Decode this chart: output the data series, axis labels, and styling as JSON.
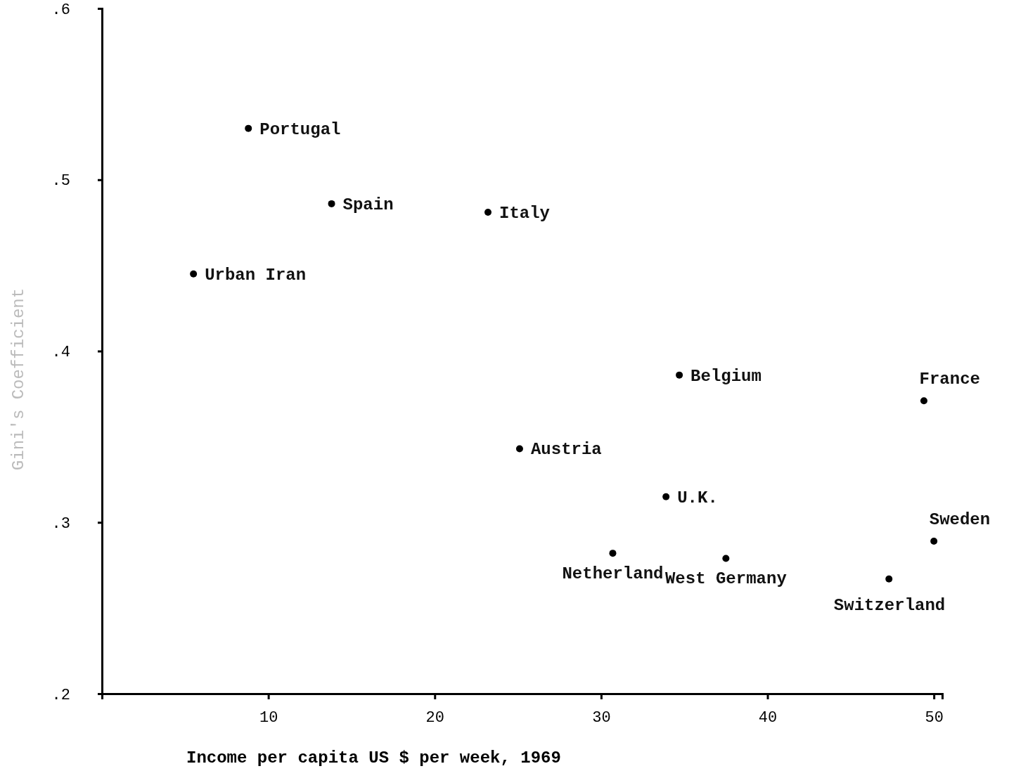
{
  "chart_data": {
    "type": "scatter",
    "xlabel": "Income per capita US $ per week, 1969",
    "ylabel": "Gini's Coefficient",
    "x": [
      8.8,
      13.8,
      23.2,
      5.5,
      34.7,
      49.4,
      25.1,
      33.9,
      30.7,
      37.5,
      50.0,
      47.3
    ],
    "values": [
      0.53,
      0.486,
      0.481,
      0.445,
      0.386,
      0.371,
      0.343,
      0.315,
      0.282,
      0.279,
      0.289,
      0.267
    ],
    "color": "#000000",
    "marker": "circle",
    "xlim": [
      0,
      50.5
    ],
    "xticks": [
      10,
      20,
      30,
      40,
      50
    ],
    "ylim": [
      0.2,
      0.6
    ],
    "yticks": [
      {
        "value": 0.2,
        "label": ".2"
      },
      {
        "value": 0.3,
        "label": ".3"
      },
      {
        "value": 0.4,
        "label": ".4"
      },
      {
        "value": 0.5,
        "label": ".5"
      },
      {
        "value": 0.6,
        "label": ".6"
      }
    ],
    "grid": false,
    "annotations": [
      {
        "text": "Portugal",
        "x": 8.8,
        "y": 0.53
      },
      {
        "text": "Spain",
        "x": 13.8,
        "y": 0.486
      },
      {
        "text": "Italy",
        "x": 23.2,
        "y": 0.481
      },
      {
        "text": "Urban Iran",
        "x": 5.5,
        "y": 0.445
      },
      {
        "text": "Belgium",
        "x": 34.7,
        "y": 0.386
      },
      {
        "text": "France",
        "x": 49.4,
        "y": 0.371
      },
      {
        "text": "Austria",
        "x": 25.1,
        "y": 0.343
      },
      {
        "text": "U.K.",
        "x": 33.9,
        "y": 0.315
      },
      {
        "text": "Netherland",
        "x": 30.7,
        "y": 0.282
      },
      {
        "text": "West Germany",
        "x": 37.5,
        "y": 0.279
      },
      {
        "text": "Sweden",
        "x": 50.0,
        "y": 0.289
      },
      {
        "text": "Switzerland",
        "x": 47.3,
        "y": 0.267
      }
    ]
  }
}
